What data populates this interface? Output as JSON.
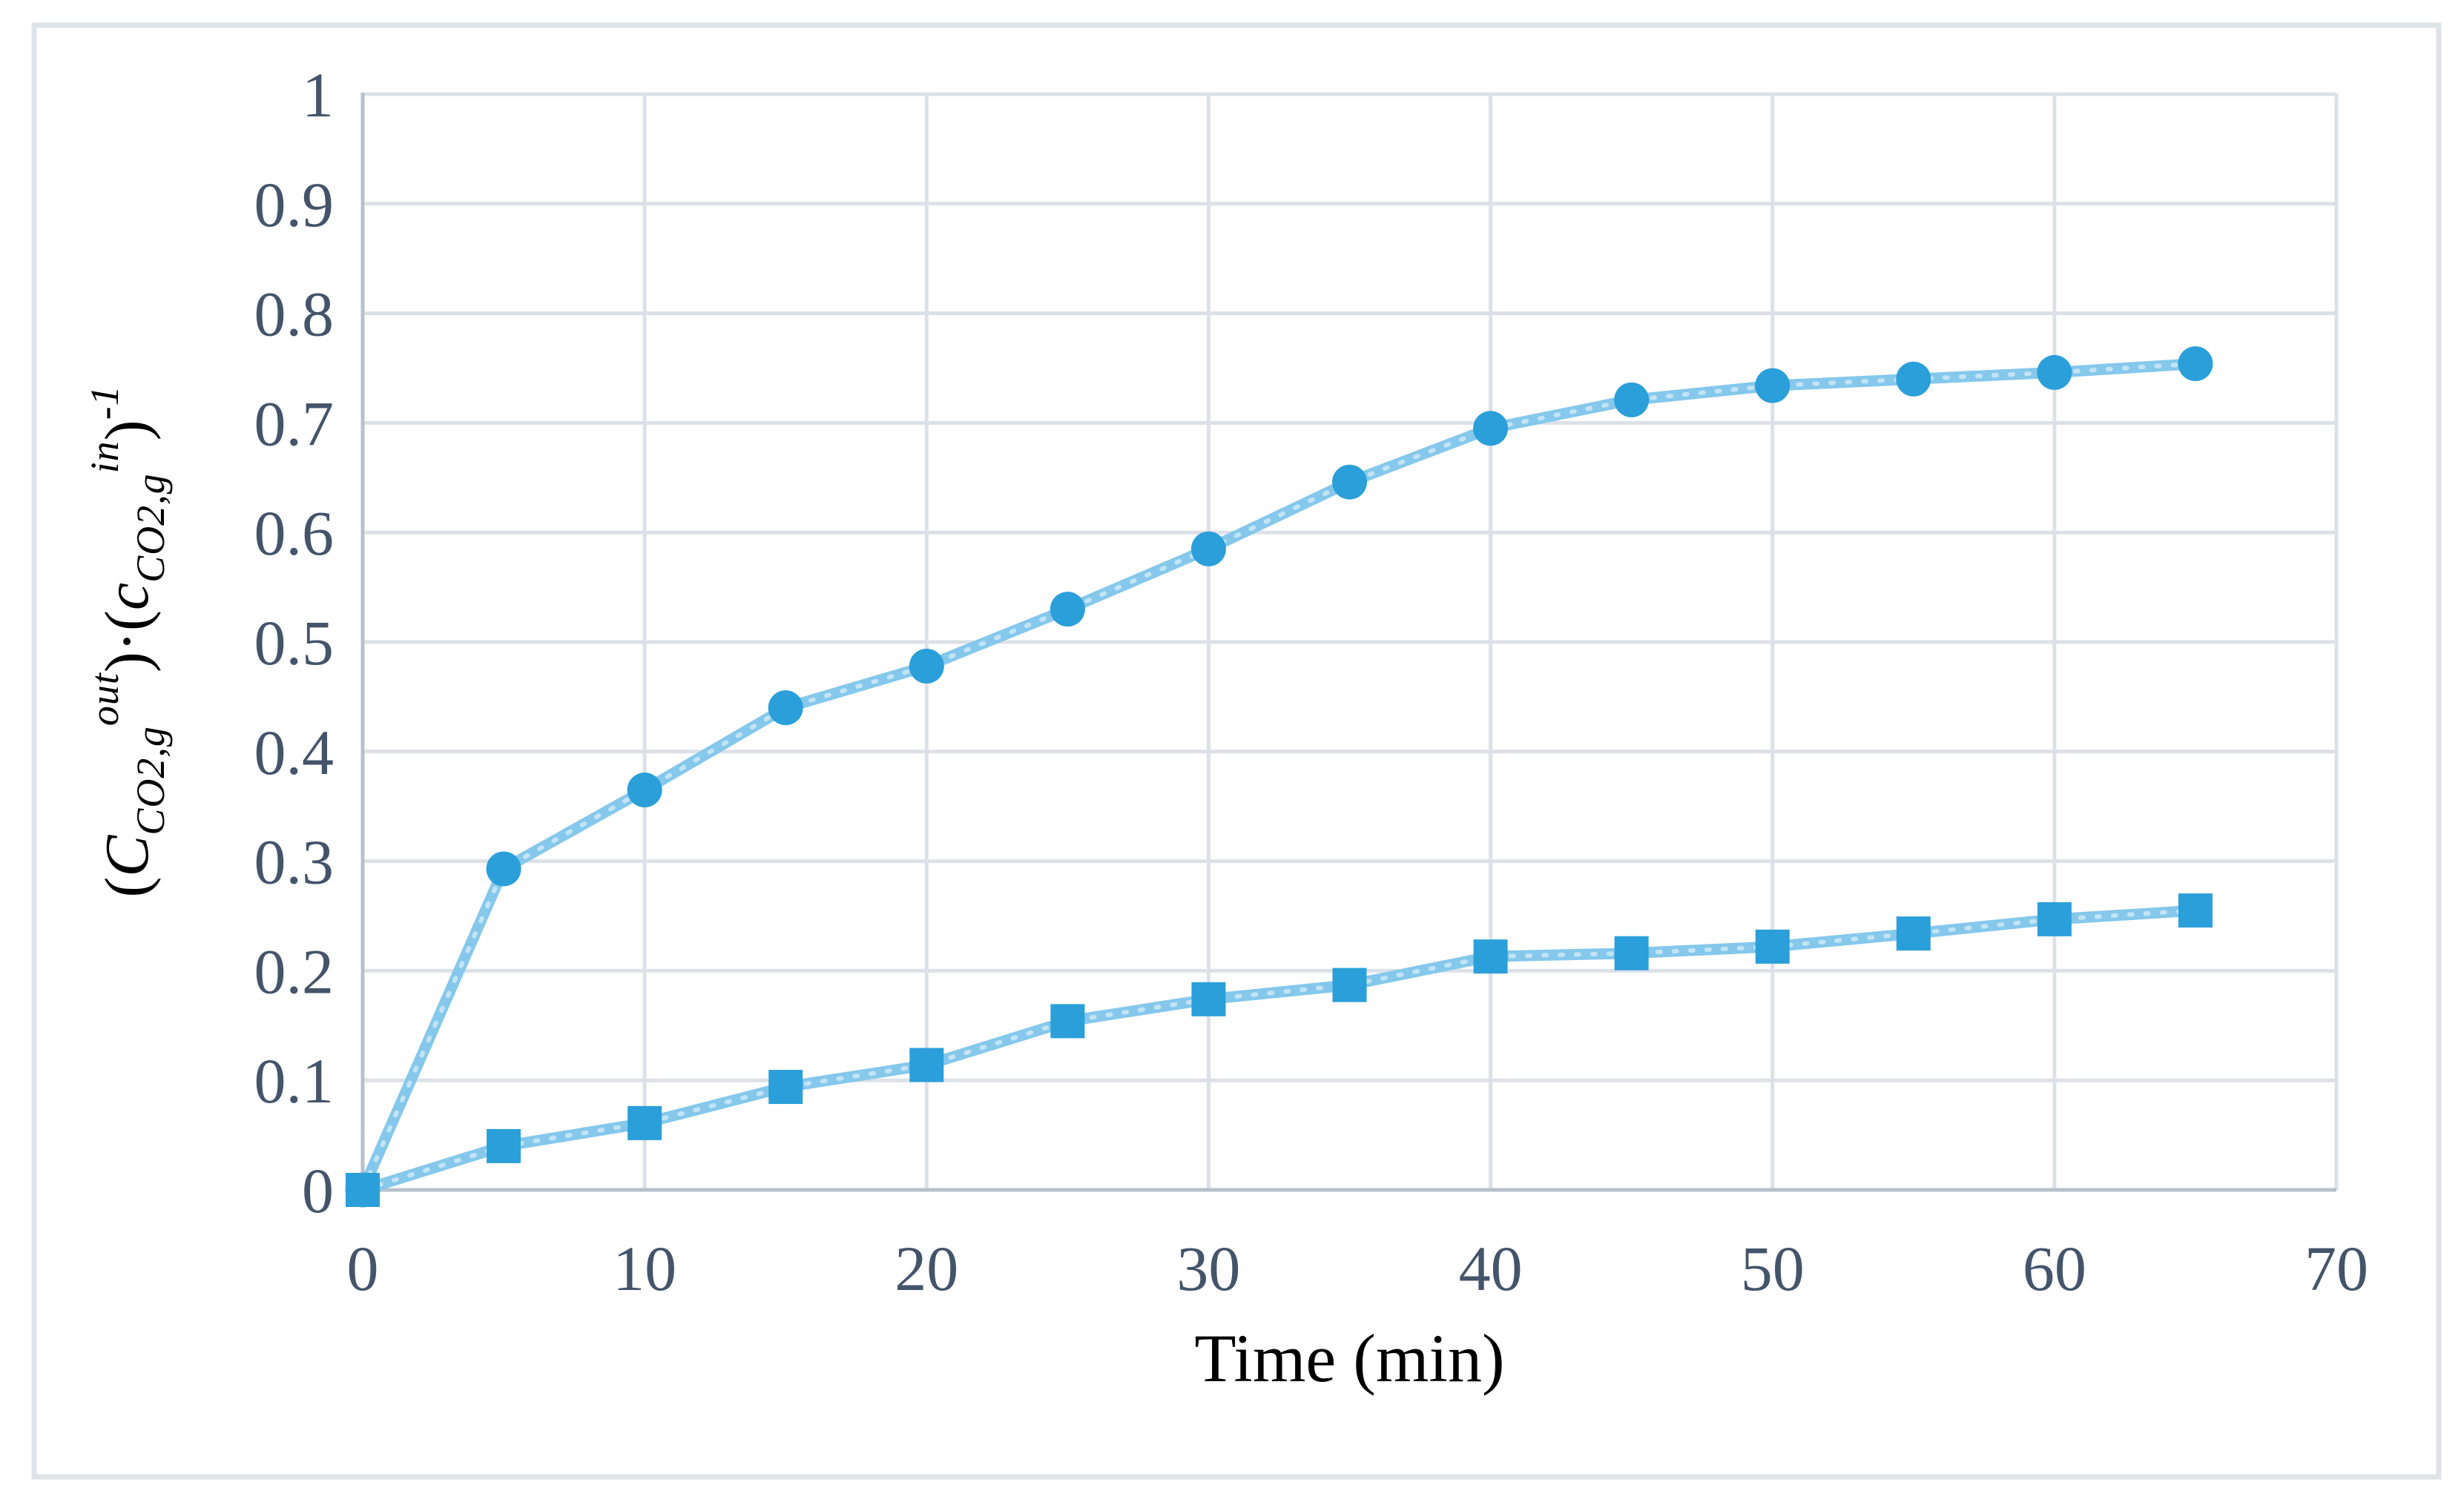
{
  "figure": {
    "background": "#ffffff",
    "border_color": "#dee3e8",
    "gridline_color": "#dce1e8",
    "axis_line_color": "#b7c1cb",
    "tick_label_color": "#44546a",
    "marker_color": "#2b9fd9",
    "line_color": "#85c8eb"
  },
  "chart_data": {
    "type": "line",
    "title": "",
    "xlabel": "Time (min)",
    "ylabel": "(C_CO2,g^out)·(c_CO2,g^in)^-1",
    "x_range": [
      0,
      70
    ],
    "y_range": [
      0,
      1
    ],
    "grid": true,
    "legend_position": "none",
    "x_tick_labels": [
      "0",
      "10",
      "20",
      "30",
      "40",
      "50",
      "60",
      "70"
    ],
    "y_tick_labels": [
      "1",
      "0.9",
      "0.8",
      "0.7",
      "0.6",
      "0.5",
      "0.4",
      "0.3",
      "0.2",
      "0.1",
      "0"
    ],
    "x": [
      0,
      5,
      10,
      15,
      20,
      25,
      30,
      35,
      40,
      45,
      50,
      55,
      60,
      65
    ],
    "series": [
      {
        "name": "circle-series",
        "marker": "circle",
        "values": [
          0,
          0.293,
          0.365,
          0.44,
          0.478,
          0.53,
          0.585,
          0.646,
          0.695,
          0.721,
          0.734,
          0.74,
          0.746,
          0.754
        ]
      },
      {
        "name": "square-series",
        "marker": "square",
        "values": [
          0,
          0.04,
          0.061,
          0.094,
          0.114,
          0.154,
          0.174,
          0.187,
          0.213,
          0.216,
          0.222,
          0.234,
          0.247,
          0.255
        ]
      }
    ]
  },
  "yaxis_title": {
    "open1": "(",
    "sym1": "C",
    "sub1": "CO2,g",
    "sup1": "out",
    "mid": ")·(",
    "sym2": "c",
    "sub2": "CO2,g",
    "sup2": "in",
    "close": ")",
    "exp": "-1"
  }
}
